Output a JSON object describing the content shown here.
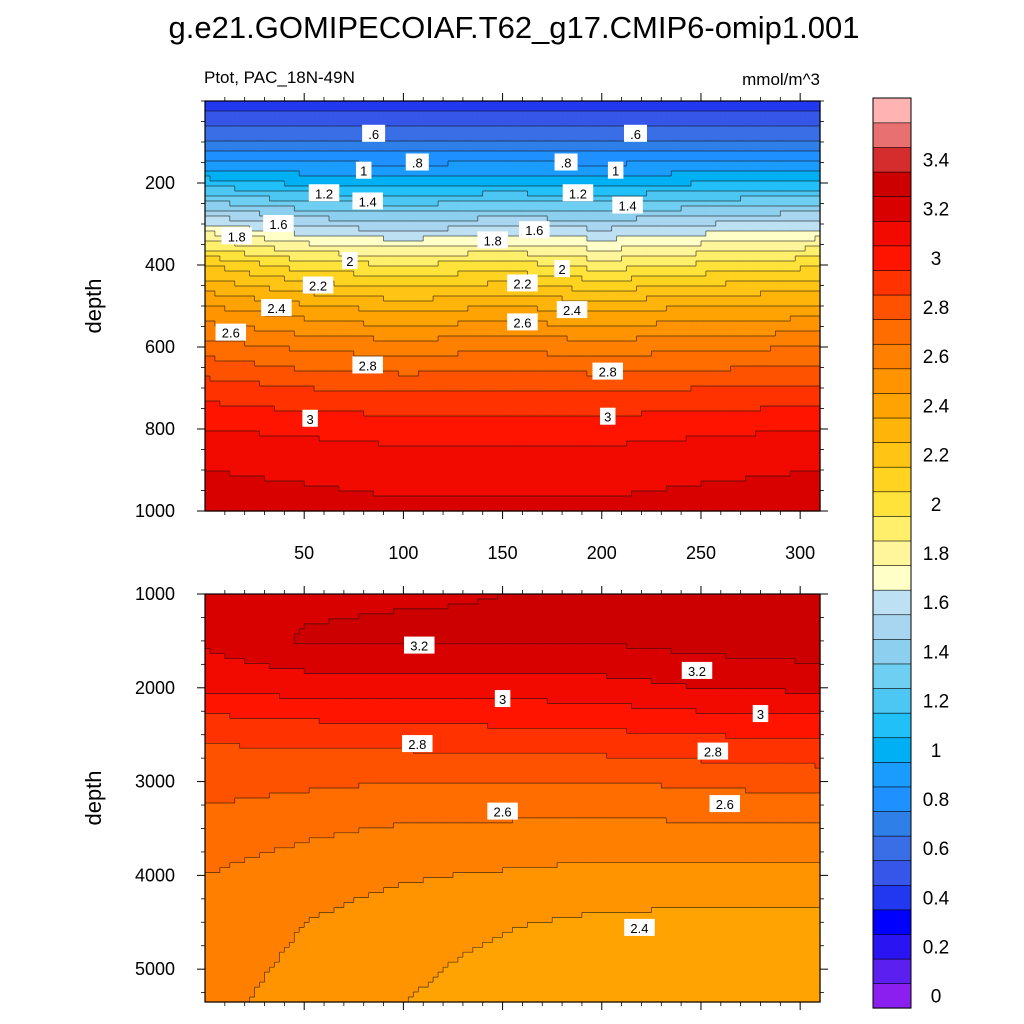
{
  "title": "g.e21.GOMIPECOIAF.T62_g17.CMIP6-omip1.001",
  "chart_data": [
    {
      "type": "heatmap",
      "variable": "Ptot",
      "region": "PAC_18N-49N",
      "left_subtitle": "Ptot, PAC_18N-49N",
      "units": "mmol/m^3",
      "ylabel": "depth",
      "xlabel": "",
      "xlim": [
        0,
        310
      ],
      "ylim": [
        1000,
        0
      ],
      "xticks": [
        "50",
        "100",
        "150",
        "200",
        "250",
        "300"
      ],
      "xtick_values": [
        50,
        100,
        150,
        200,
        250,
        300
      ],
      "yticks": [
        "200",
        "400",
        "600",
        "800",
        "1000"
      ],
      "ytick_values": [
        200,
        400,
        600,
        800,
        1000
      ],
      "x": [
        0,
        50,
        100,
        150,
        200,
        250,
        310
      ],
      "depth": [
        0,
        100,
        200,
        300,
        400,
        500,
        600,
        700,
        800,
        900,
        1000
      ],
      "z": [
        [
          0.35,
          0.35,
          0.35,
          0.35,
          0.35,
          0.35,
          0.35
        ],
        [
          0.62,
          0.62,
          0.62,
          0.62,
          0.62,
          0.62,
          0.62
        ],
        [
          1.05,
          0.98,
          0.95,
          0.98,
          0.95,
          1.0,
          1.02
        ],
        [
          1.6,
          1.48,
          1.42,
          1.48,
          1.45,
          1.5,
          1.55
        ],
        [
          2.1,
          1.95,
          1.9,
          1.95,
          1.85,
          1.92,
          1.98
        ],
        [
          2.4,
          2.32,
          2.25,
          2.3,
          2.25,
          2.3,
          2.32
        ],
        [
          2.65,
          2.58,
          2.55,
          2.58,
          2.55,
          2.58,
          2.6
        ],
        [
          2.85,
          2.8,
          2.78,
          2.78,
          2.78,
          2.8,
          2.82
        ],
        [
          3.0,
          2.98,
          2.96,
          2.96,
          2.96,
          2.98,
          3.0
        ],
        [
          3.1,
          3.08,
          3.06,
          3.06,
          3.06,
          3.08,
          3.1
        ],
        [
          3.16,
          3.14,
          3.12,
          3.12,
          3.12,
          3.14,
          3.16
        ]
      ],
      "contour_labels": [
        {
          "text": ".6",
          "x": 85,
          "depth": 80
        },
        {
          "text": ".6",
          "x": 217,
          "depth": 80
        },
        {
          "text": ".8",
          "x": 107,
          "depth": 150
        },
        {
          "text": ".8",
          "x": 182,
          "depth": 150
        },
        {
          "text": "1",
          "x": 80,
          "depth": 170
        },
        {
          "text": "1",
          "x": 207,
          "depth": 170
        },
        {
          "text": "1.2",
          "x": 60,
          "depth": 225
        },
        {
          "text": "1.2",
          "x": 188,
          "depth": 225
        },
        {
          "text": "1.4",
          "x": 82,
          "depth": 245
        },
        {
          "text": "1.4",
          "x": 213,
          "depth": 255
        },
        {
          "text": "1.6",
          "x": 37,
          "depth": 300
        },
        {
          "text": "1.6",
          "x": 166,
          "depth": 315
        },
        {
          "text": "1.8",
          "x": 16,
          "depth": 330
        },
        {
          "text": "1.8",
          "x": 145,
          "depth": 340
        },
        {
          "text": "2",
          "x": 73,
          "depth": 390
        },
        {
          "text": "2",
          "x": 180,
          "depth": 410
        },
        {
          "text": "2.2",
          "x": 57,
          "depth": 450
        },
        {
          "text": "2.2",
          "x": 160,
          "depth": 445
        },
        {
          "text": "2.4",
          "x": 36,
          "depth": 505
        },
        {
          "text": "2.4",
          "x": 185,
          "depth": 510
        },
        {
          "text": "2.6",
          "x": 13,
          "depth": 565
        },
        {
          "text": "2.6",
          "x": 160,
          "depth": 540
        },
        {
          "text": "2.8",
          "x": 82,
          "depth": 645
        },
        {
          "text": "2.8",
          "x": 203,
          "depth": 660
        },
        {
          "text": "3",
          "x": 53,
          "depth": 775
        },
        {
          "text": "3",
          "x": 203,
          "depth": 770
        }
      ]
    },
    {
      "type": "heatmap",
      "variable": "Ptot",
      "region": "PAC_18N-49N",
      "units": "mmol/m^3",
      "ylabel": "depth",
      "xlabel": "",
      "xlim": [
        0,
        310
      ],
      "ylim": [
        5350,
        1000
      ],
      "yticks": [
        "1000",
        "2000",
        "3000",
        "4000",
        "5000"
      ],
      "ytick_values": [
        1000,
        2000,
        3000,
        4000,
        5000
      ],
      "x": [
        0,
        50,
        100,
        150,
        200,
        250,
        310
      ],
      "depth": [
        1000,
        1500,
        2000,
        2500,
        3000,
        3500,
        4000,
        4500,
        5000,
        5350
      ],
      "z": [
        [
          3.16,
          3.18,
          3.19,
          3.2,
          3.22,
          3.26,
          3.3
        ],
        [
          3.12,
          3.21,
          3.22,
          3.21,
          3.21,
          3.24,
          3.27
        ],
        [
          3.02,
          3.04,
          3.04,
          3.04,
          3.06,
          3.1,
          3.12
        ],
        [
          2.81,
          2.84,
          2.85,
          2.87,
          2.88,
          2.9,
          2.92
        ],
        [
          2.74,
          2.72,
          2.7,
          2.7,
          2.7,
          2.72,
          2.74
        ],
        [
          2.66,
          2.62,
          2.59,
          2.58,
          2.57,
          2.58,
          2.59
        ],
        [
          2.6,
          2.55,
          2.51,
          2.49,
          2.47,
          2.47,
          2.47
        ],
        [
          2.56,
          2.5,
          2.45,
          2.41,
          2.38,
          2.37,
          2.37
        ],
        [
          2.54,
          2.48,
          2.42,
          2.37,
          2.34,
          2.33,
          2.33
        ],
        [
          2.53,
          2.46,
          2.4,
          2.36,
          2.33,
          2.32,
          2.32
        ]
      ],
      "contour_labels": [
        {
          "text": "3.2",
          "x": 108,
          "depth": 1550
        },
        {
          "text": "3.2",
          "x": 248,
          "depth": 1820
        },
        {
          "text": "3",
          "x": 150,
          "depth": 2120
        },
        {
          "text": "3",
          "x": 280,
          "depth": 2280
        },
        {
          "text": "2.8",
          "x": 107,
          "depth": 2600
        },
        {
          "text": "2.8",
          "x": 256,
          "depth": 2680
        },
        {
          "text": "2.6",
          "x": 150,
          "depth": 3320
        },
        {
          "text": "2.6",
          "x": 262,
          "depth": 3240
        },
        {
          "text": "2.4",
          "x": 219,
          "depth": 4560
        }
      ]
    }
  ],
  "colorbar": {
    "levels": [
      0,
      0.1,
      0.2,
      0.3,
      0.4,
      0.5,
      0.6,
      0.7,
      0.8,
      0.9,
      1.0,
      1.1,
      1.2,
      1.3,
      1.4,
      1.5,
      1.6,
      1.7,
      1.8,
      1.9,
      2.0,
      2.1,
      2.2,
      2.3,
      2.4,
      2.5,
      2.6,
      2.7,
      2.8,
      2.9,
      3.0,
      3.1,
      3.2,
      3.3,
      3.4,
      3.5
    ],
    "labels": [
      "0",
      "0.2",
      "0.4",
      "0.6",
      "0.8",
      "1",
      "1.2",
      "1.4",
      "1.6",
      "1.8",
      "2",
      "2.2",
      "2.4",
      "2.6",
      "2.8",
      "3",
      "3.2",
      "3.4"
    ],
    "label_values": [
      0,
      0.2,
      0.4,
      0.6,
      0.8,
      1.0,
      1.2,
      1.4,
      1.6,
      1.8,
      2.0,
      2.2,
      2.4,
      2.6,
      2.8,
      3.0,
      3.2,
      3.4
    ],
    "colors": [
      "#8a1ff0",
      "#5b1ff0",
      "#2a14f2",
      "#0000ff",
      "#2138f0",
      "#3556e8",
      "#3a6ee6",
      "#2f7fe8",
      "#1e90ff",
      "#1a9cff",
      "#00b0f5",
      "#22c0f8",
      "#4cc6f2",
      "#6ecff2",
      "#8ccfee",
      "#a8d6f0",
      "#bde0f3",
      "#ffffc7",
      "#fff59a",
      "#ffef6a",
      "#ffe23a",
      "#ffd31f",
      "#ffc414",
      "#ffb40a",
      "#ffa302",
      "#ff9300",
      "#ff8000",
      "#ff6c00",
      "#ff5200",
      "#ff3200",
      "#ff1400",
      "#f20a00",
      "#d90000",
      "#cd0000",
      "#d52d2d",
      "#e87070",
      "#ffb3b3"
    ]
  }
}
